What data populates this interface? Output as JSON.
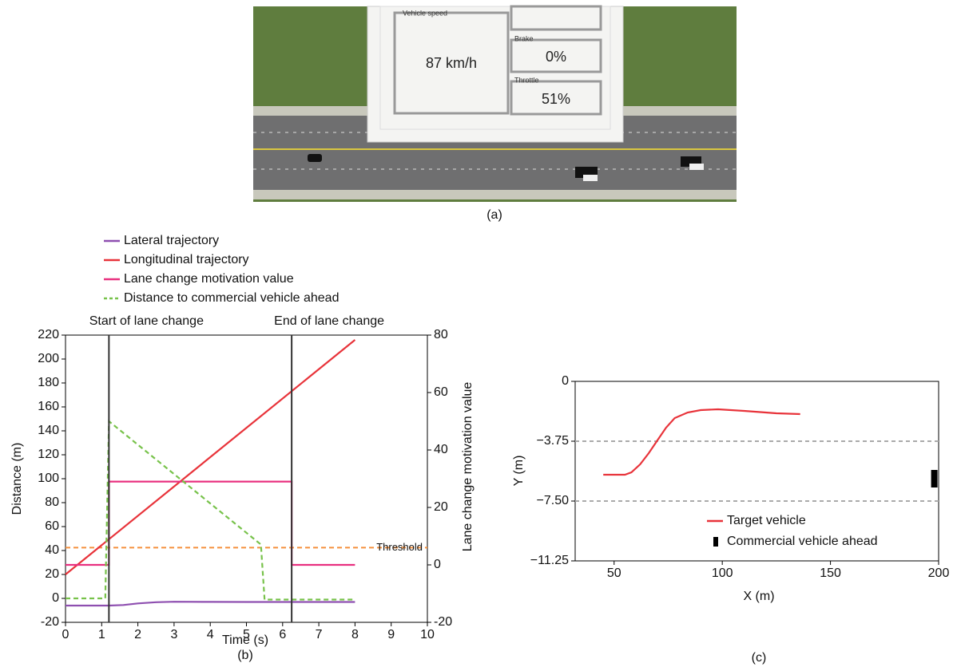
{
  "panel_a": {
    "label": "(a)",
    "vehicle_speed": {
      "label": "Vehicle speed",
      "value": "87 km/h"
    },
    "brake": {
      "label": "Brake",
      "value": "0%"
    },
    "throttle": {
      "label": "Throttle",
      "value": "51%"
    }
  },
  "chart_data": [
    {
      "type": "line",
      "label": "(b)",
      "xlabel": "Time (s)",
      "ylabel": "Distance (m)",
      "y2label": "Lane change motivation value",
      "xlim": [
        0,
        10
      ],
      "xticks": [
        0,
        1,
        2,
        3,
        4,
        5,
        6,
        7,
        8,
        9,
        10
      ],
      "ylim": [
        -20,
        220
      ],
      "yticks": [
        -20,
        0,
        20,
        40,
        60,
        80,
        100,
        120,
        140,
        160,
        180,
        200,
        220
      ],
      "y2lim": [
        -20,
        80
      ],
      "y2ticks": [
        -20,
        0,
        20,
        40,
        60,
        80
      ],
      "legend": "above",
      "series": [
        {
          "name": "Lateral trajectory",
          "color": "#8e4fb0",
          "x": [
            0,
            1.2,
            1.6,
            2,
            2.5,
            3,
            4,
            5,
            6,
            7,
            8
          ],
          "values": [
            -6,
            -6,
            -5.5,
            -4.2,
            -3.2,
            -2.8,
            -2.9,
            -3,
            -3,
            -3,
            -3
          ]
        },
        {
          "name": "Longitudinal trajectory",
          "color": "#e8333a",
          "x": [
            0,
            8
          ],
          "values": [
            20,
            216
          ]
        },
        {
          "name": "Lane change motivation value",
          "color": "#e8307f",
          "axis": "y2",
          "x": [
            0,
            1.2,
            1.2,
            6.25,
            6.25,
            8
          ],
          "values": [
            0,
            0,
            29,
            29,
            0,
            0
          ]
        },
        {
          "name": "Distance to commercial vehicle ahead",
          "color": "#77c24a",
          "dash": "dashed",
          "x": [
            0,
            1.1,
            1.2,
            5.4,
            5.5,
            8
          ],
          "values": [
            0,
            0,
            148,
            45,
            -1,
            -1
          ]
        }
      ],
      "threshold": {
        "value": 6,
        "label": "Threshold",
        "axis": "y2",
        "color": "#f5913e"
      },
      "vlines": [
        {
          "x": 1.2,
          "label": "Start of lane change"
        },
        {
          "x": 6.25,
          "label": "End of lane change"
        }
      ]
    },
    {
      "type": "line",
      "label": "(c)",
      "xlabel": "X (m)",
      "ylabel": "Y (m)",
      "xlim": [
        32,
        200
      ],
      "xticks": [
        50,
        100,
        150,
        200
      ],
      "ylim": [
        -11.25,
        0
      ],
      "yticks": [
        0,
        {
          "value": -3.75,
          "label": "−3.75"
        },
        {
          "value": -7.5,
          "label": "−7.50"
        },
        {
          "value": -11.25,
          "label": "−11.25"
        }
      ],
      "lane_lines": [
        -3.75,
        -7.5
      ],
      "legend": "lower right",
      "series": [
        {
          "name": "Target vehicle",
          "color": "#e8333a",
          "x": [
            45,
            55,
            58,
            62,
            66,
            70,
            74,
            78,
            84,
            90,
            98,
            110,
            125,
            136
          ],
          "values": [
            -5.85,
            -5.85,
            -5.7,
            -5.2,
            -4.5,
            -3.7,
            -2.9,
            -2.3,
            -1.95,
            -1.8,
            -1.75,
            -1.85,
            -2.0,
            -2.05
          ]
        },
        {
          "name": "Commercial vehicle ahead",
          "color": "#000000",
          "marker": "rect",
          "x": [
            198
          ],
          "values": [
            -6.1
          ]
        }
      ]
    }
  ]
}
